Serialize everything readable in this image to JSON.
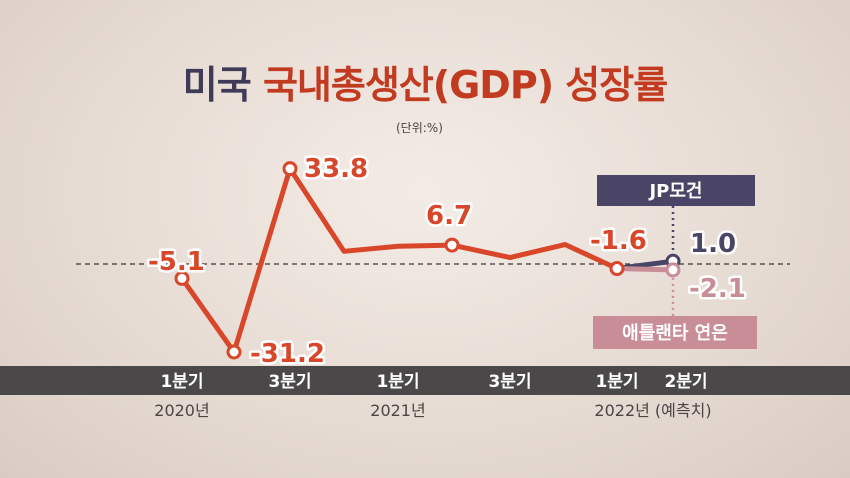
{
  "title": {
    "part1": "미국",
    "part2": "국내총생산(GDP) 성장률"
  },
  "unit_note": "(단위:%)",
  "colors": {
    "main_line": "#d9472a",
    "jp_morgan": "#4a4566",
    "atlanta_fed": "#c98d98",
    "axis_band": "#4a4848",
    "title_dark": "#3f3a55",
    "title_red": "#c23a1f"
  },
  "chart_data": {
    "type": "line",
    "y_ticks_shown": false,
    "baseline": 0,
    "x_tick_labels": [
      "1분기",
      "3분기",
      "1분기",
      "3분기",
      "1분기",
      "2분기"
    ],
    "x_group_labels": [
      "2020년",
      "2021년",
      "2022년 (예측치)"
    ],
    "series": [
      {
        "key": "actual",
        "values": [
          -5.1,
          -31.2,
          33.8,
          4.5,
          6.3,
          6.7,
          2.3,
          6.9,
          -1.6
        ],
        "labels": [
          "-5.1",
          "-31.2",
          "33.8",
          "",
          "",
          "6.7",
          "",
          "",
          "-1.6"
        ]
      },
      {
        "key": "jp",
        "name": "JP모건",
        "from": -1.6,
        "value": 1.0,
        "label": "1.0"
      },
      {
        "key": "atlanta",
        "name": "애틀랜타 연은",
        "from": -1.6,
        "value": -2.1,
        "label": "-2.1"
      }
    ]
  }
}
